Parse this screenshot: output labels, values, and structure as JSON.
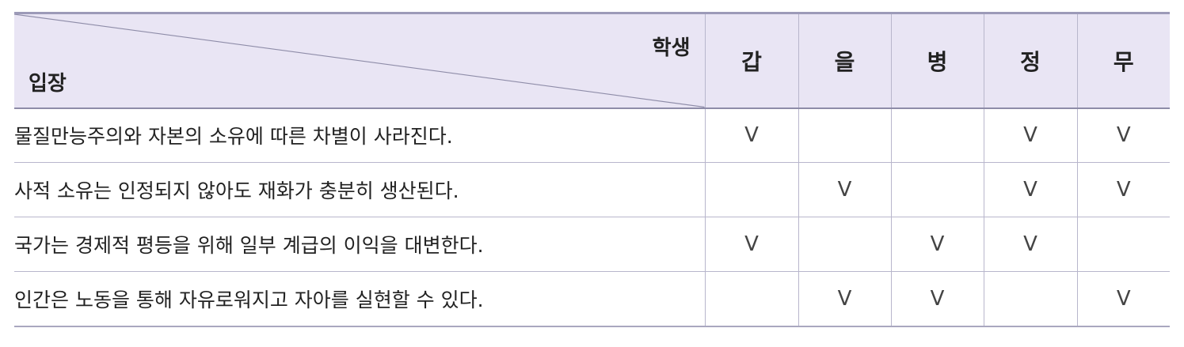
{
  "header": {
    "diag_top_label": "학생",
    "diag_bottom_label": "입장",
    "students": [
      "갑",
      "을",
      "병",
      "정",
      "무"
    ]
  },
  "check_symbol": "V",
  "rows": [
    {
      "statement": "물질만능주의와 자본의 소유에 따른 차별이 사라진다.",
      "checks": [
        true,
        false,
        false,
        true,
        true
      ]
    },
    {
      "statement": "사적 소유는 인정되지 않아도 재화가 충분히 생산된다.",
      "checks": [
        false,
        true,
        false,
        true,
        true
      ]
    },
    {
      "statement": "국가는 경제적 평등을 위해 일부 계급의 이익을 대변한다.",
      "checks": [
        true,
        false,
        true,
        true,
        false
      ]
    },
    {
      "statement": "인간은 노동을 통해 자유로워지고 자아를 실현할 수 있다.",
      "checks": [
        false,
        true,
        true,
        false,
        true
      ]
    }
  ],
  "colors": {
    "header_bg": "#e9e5f4",
    "rule": "#9c9ab8"
  }
}
